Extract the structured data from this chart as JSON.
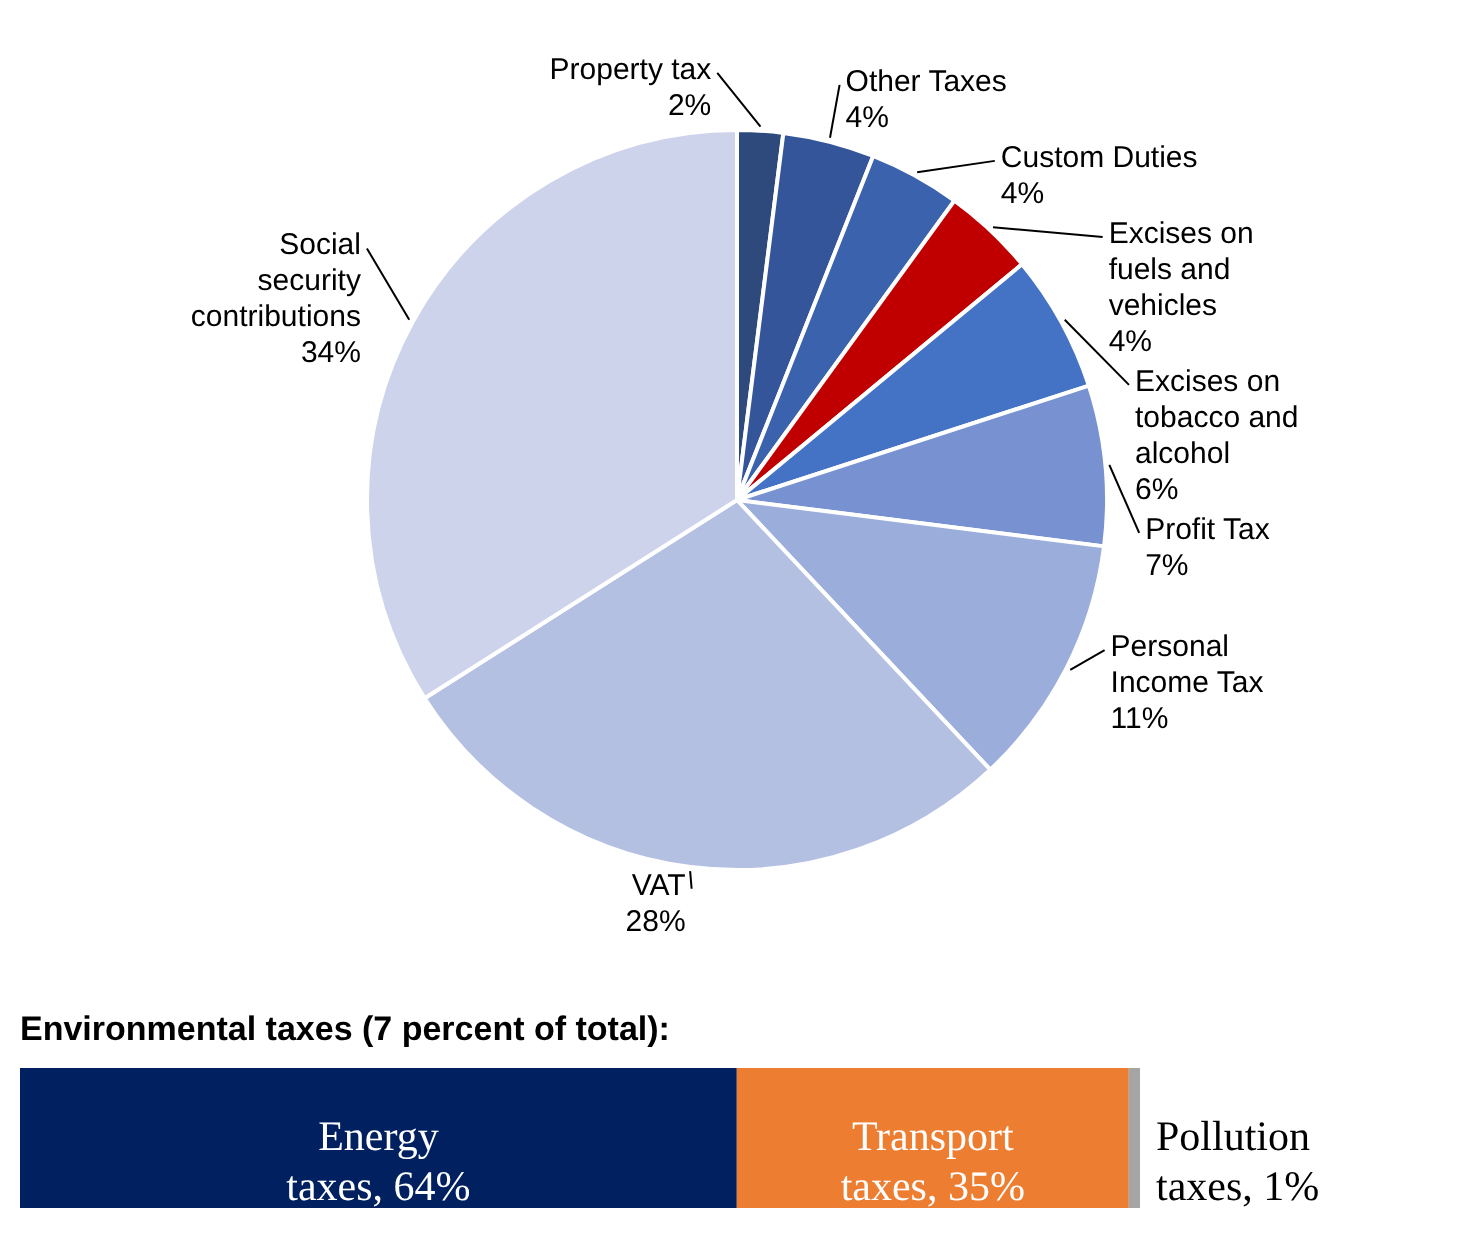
{
  "chart_data": [
    {
      "type": "pie",
      "categories": [
        "Property tax",
        "Other Taxes",
        "Custom Duties",
        "Excises on fuels and vehicles",
        "Excises on tobacco and alcohol",
        "Profit Tax",
        "Personal Income Tax",
        "VAT",
        "Social security contributions"
      ],
      "values": [
        2,
        4,
        4,
        4,
        6,
        7,
        11,
        28,
        34
      ],
      "colors": [
        "#2e4a7d",
        "#35559a",
        "#3b62ad",
        "#c00000",
        "#4472c4",
        "#7891d0",
        "#9aaddb",
        "#b4c0e2",
        "#ccd3eb"
      ],
      "value_labels": [
        "2%",
        "4%",
        "4%",
        "4%",
        "6%",
        "7%",
        "11%",
        "28%",
        "34%"
      ]
    },
    {
      "type": "bar",
      "orientation": "horizontal",
      "stacked": true,
      "title": "Environmental taxes (7 percent of total):",
      "categories": [
        null
      ],
      "xlim": [
        0,
        100
      ],
      "tick_labels": false,
      "series": [
        {
          "color": "#002060",
          "values": [
            64
          ],
          "value_labels": [
            "Energy taxes, 64%"
          ]
        },
        {
          "color": "#ed7d31",
          "values": [
            35
          ],
          "value_labels": [
            "Transport taxes, 35%"
          ]
        },
        {
          "color": "#a5a5a5",
          "values": [
            1
          ],
          "value_labels": [
            "Pollution taxes, 1%"
          ]
        }
      ]
    }
  ]
}
